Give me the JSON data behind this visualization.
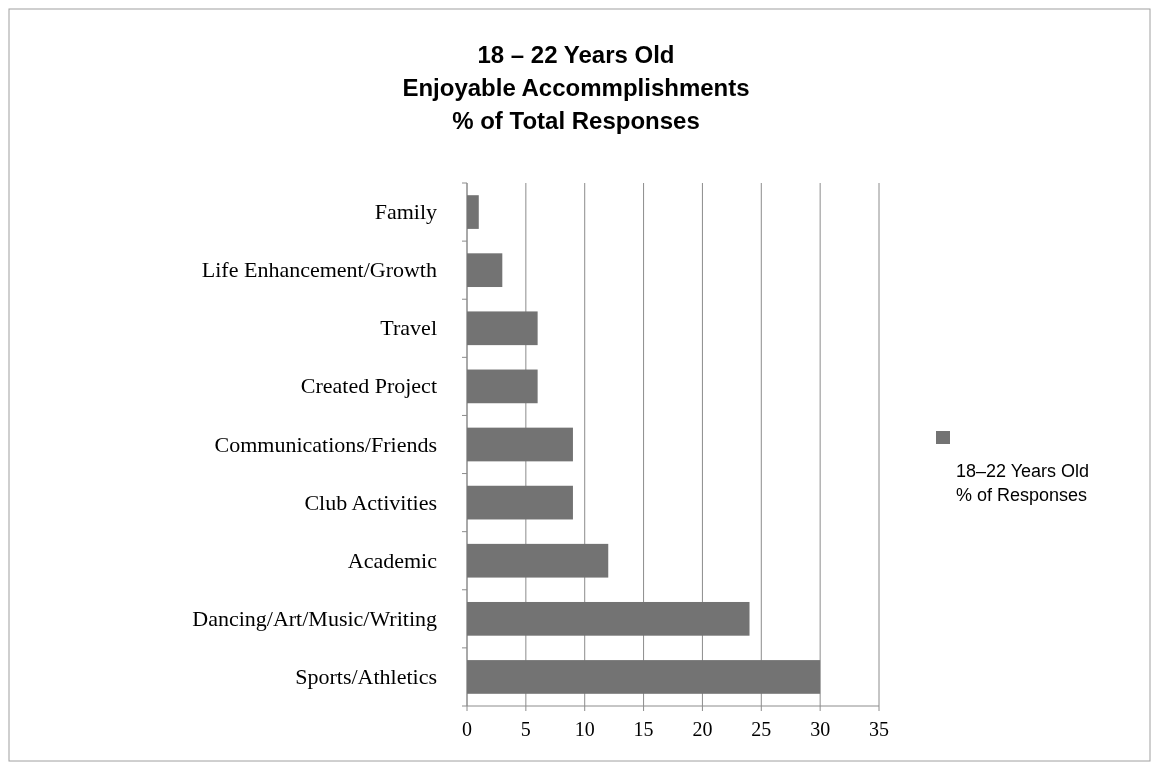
{
  "chart_data": {
    "type": "bar",
    "orientation": "horizontal",
    "title": "18 – 22 Years Old\nEnjoyable Accommplishments\n% of Total Responses",
    "categories": [
      "Family",
      "Life Enhancement/Growth",
      "Travel",
      "Created Project",
      "Communications/Friends",
      "Club Activities",
      "Academic",
      "Dancing/Art/Music/Writing",
      "Sports/Athletics"
    ],
    "series": [
      {
        "name": "18–22 Years Old\n% of Responses",
        "color": "#737373",
        "values": [
          1,
          3,
          6,
          6,
          9,
          9,
          12,
          24,
          30
        ]
      }
    ],
    "xlim": [
      0,
      35
    ],
    "xticks": [
      0,
      5,
      10,
      15,
      20,
      25,
      30,
      35
    ],
    "grid": "x",
    "legend": "right"
  }
}
